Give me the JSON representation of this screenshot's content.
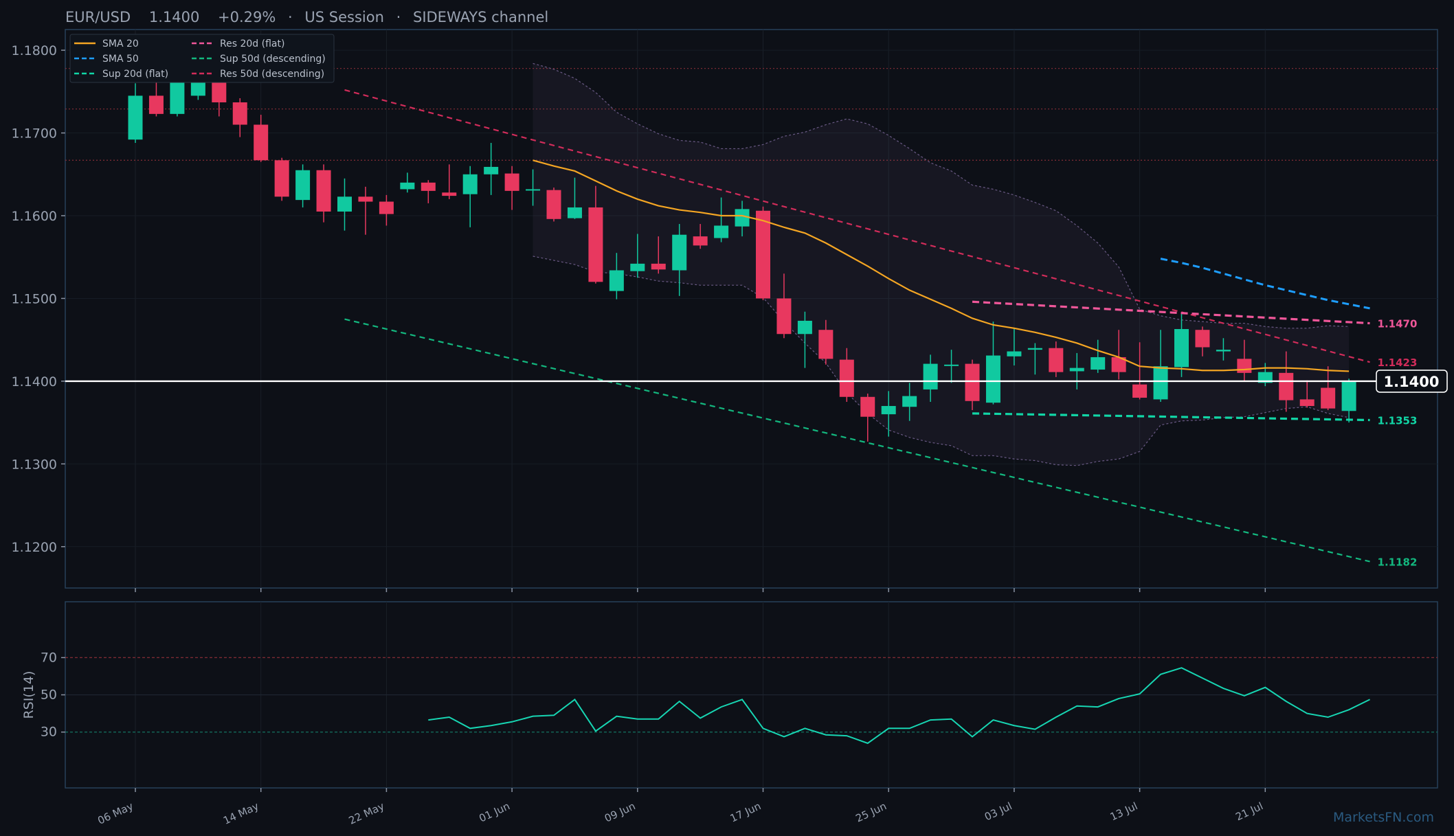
{
  "header": {
    "symbol": "EUR/USD",
    "price": "1.1400",
    "change": "+0.29%",
    "session": "US Session",
    "regime": "SIDEWAYS channel",
    "separator": "·"
  },
  "watermark": "MarketsFN.com",
  "colors": {
    "background": "#0d1017",
    "panel_border": "#26405a",
    "bull": "#11c9a0",
    "bear": "#e8385f",
    "sma20": "#f5a623",
    "sma50": "#1e9eff",
    "res20": "#f0579a",
    "sup20": "#11d6a6",
    "res50": "#d12c5a",
    "sup50": "#13b87f",
    "price_line": "#ffffff",
    "rsi": "#17d6b3"
  },
  "legend": [
    {
      "label": "SMA 20",
      "color": "#f5a623",
      "style": "solid"
    },
    {
      "label": "Res 20d (flat)",
      "color": "#f0579a",
      "style": "dashed"
    },
    {
      "label": "SMA 50",
      "color": "#1e9eff",
      "style": "dashed"
    },
    {
      "label": "Sup 50d (descending)",
      "color": "#13b87f",
      "style": "dashed"
    },
    {
      "label": "Sup 20d (flat)",
      "color": "#11d6a6",
      "style": "dashed"
    },
    {
      "label": "Res 50d (descending)",
      "color": "#d12c5a",
      "style": "dashed"
    }
  ],
  "chart_data": [
    {
      "type": "candlestick",
      "title": "EUR/USD 1.1400 +0.29% · US Session · SIDEWAYS channel",
      "ylim": [
        1.115,
        1.1825
      ],
      "yticks": [
        "1.1200",
        "1.1300",
        "1.1400",
        "1.1500",
        "1.1600",
        "1.1700",
        "1.1800"
      ],
      "x_tick_labels": [
        "06 May",
        "14 May",
        "22 May",
        "01 Jun",
        "09 Jun",
        "17 Jun",
        "25 Jun",
        "03 Jul",
        "13 Jul",
        "21 Jul"
      ],
      "x_tick_indices": [
        0,
        6,
        12,
        18,
        24,
        30,
        36,
        42,
        48,
        54
      ],
      "candles": [
        {
          "o": 1.1692,
          "h": 1.176,
          "l": 1.1688,
          "c": 1.1745
        },
        {
          "o": 1.1745,
          "h": 1.1762,
          "l": 1.172,
          "c": 1.1723
        },
        {
          "o": 1.1723,
          "h": 1.179,
          "l": 1.172,
          "c": 1.1785
        },
        {
          "o": 1.1745,
          "h": 1.179,
          "l": 1.174,
          "c": 1.1782
        },
        {
          "o": 1.1782,
          "h": 1.179,
          "l": 1.172,
          "c": 1.1737
        },
        {
          "o": 1.1737,
          "h": 1.1742,
          "l": 1.1695,
          "c": 1.171
        },
        {
          "o": 1.171,
          "h": 1.1722,
          "l": 1.1665,
          "c": 1.1667
        },
        {
          "o": 1.1667,
          "h": 1.167,
          "l": 1.1618,
          "c": 1.1623
        },
        {
          "o": 1.1619,
          "h": 1.1662,
          "l": 1.161,
          "c": 1.1655
        },
        {
          "o": 1.1655,
          "h": 1.1662,
          "l": 1.1592,
          "c": 1.1605
        },
        {
          "o": 1.1605,
          "h": 1.1645,
          "l": 1.1582,
          "c": 1.1623
        },
        {
          "o": 1.1623,
          "h": 1.1635,
          "l": 1.1577,
          "c": 1.1617
        },
        {
          "o": 1.1617,
          "h": 1.1625,
          "l": 1.1588,
          "c": 1.1602
        },
        {
          "o": 1.1632,
          "h": 1.1652,
          "l": 1.1628,
          "c": 1.164
        },
        {
          "o": 1.164,
          "h": 1.1643,
          "l": 1.1615,
          "c": 1.163
        },
        {
          "o": 1.1628,
          "h": 1.1662,
          "l": 1.162,
          "c": 1.1624
        },
        {
          "o": 1.1626,
          "h": 1.166,
          "l": 1.1586,
          "c": 1.165
        },
        {
          "o": 1.165,
          "h": 1.1688,
          "l": 1.1625,
          "c": 1.1659
        },
        {
          "o": 1.1651,
          "h": 1.166,
          "l": 1.1607,
          "c": 1.163
        },
        {
          "o": 1.1631,
          "h": 1.1656,
          "l": 1.1612,
          "c": 1.1632
        },
        {
          "o": 1.1631,
          "h": 1.1634,
          "l": 1.1593,
          "c": 1.1596
        },
        {
          "o": 1.1597,
          "h": 1.1646,
          "l": 1.1596,
          "c": 1.161
        },
        {
          "o": 1.161,
          "h": 1.1636,
          "l": 1.1518,
          "c": 1.152
        },
        {
          "o": 1.1509,
          "h": 1.1555,
          "l": 1.1499,
          "c": 1.1534
        },
        {
          "o": 1.1533,
          "h": 1.1578,
          "l": 1.1525,
          "c": 1.1542
        },
        {
          "o": 1.1542,
          "h": 1.1575,
          "l": 1.153,
          "c": 1.1535
        },
        {
          "o": 1.1534,
          "h": 1.159,
          "l": 1.1503,
          "c": 1.1577
        },
        {
          "o": 1.1575,
          "h": 1.159,
          "l": 1.156,
          "c": 1.1564
        },
        {
          "o": 1.1573,
          "h": 1.1622,
          "l": 1.1568,
          "c": 1.1588
        },
        {
          "o": 1.1587,
          "h": 1.1618,
          "l": 1.1575,
          "c": 1.1608
        },
        {
          "o": 1.1606,
          "h": 1.1611,
          "l": 1.1498,
          "c": 1.15
        },
        {
          "o": 1.15,
          "h": 1.153,
          "l": 1.1452,
          "c": 1.1457
        },
        {
          "o": 1.1457,
          "h": 1.1484,
          "l": 1.1416,
          "c": 1.1473
        },
        {
          "o": 1.1462,
          "h": 1.1474,
          "l": 1.142,
          "c": 1.1427
        },
        {
          "o": 1.1426,
          "h": 1.144,
          "l": 1.1375,
          "c": 1.1381
        },
        {
          "o": 1.1381,
          "h": 1.1385,
          "l": 1.1327,
          "c": 1.1357
        },
        {
          "o": 1.136,
          "h": 1.1388,
          "l": 1.1333,
          "c": 1.137
        },
        {
          "o": 1.1369,
          "h": 1.1398,
          "l": 1.1352,
          "c": 1.1382
        },
        {
          "o": 1.139,
          "h": 1.1432,
          "l": 1.1375,
          "c": 1.1421
        },
        {
          "o": 1.142,
          "h": 1.1438,
          "l": 1.1398,
          "c": 1.142
        },
        {
          "o": 1.1421,
          "h": 1.1426,
          "l": 1.1365,
          "c": 1.1376
        },
        {
          "o": 1.1374,
          "h": 1.1472,
          "l": 1.1372,
          "c": 1.1431
        },
        {
          "o": 1.143,
          "h": 1.1464,
          "l": 1.1419,
          "c": 1.1436
        },
        {
          "o": 1.1438,
          "h": 1.1446,
          "l": 1.1408,
          "c": 1.144
        },
        {
          "o": 1.144,
          "h": 1.1448,
          "l": 1.1405,
          "c": 1.1411
        },
        {
          "o": 1.1412,
          "h": 1.1434,
          "l": 1.139,
          "c": 1.1416
        },
        {
          "o": 1.1414,
          "h": 1.145,
          "l": 1.141,
          "c": 1.1429
        },
        {
          "o": 1.1429,
          "h": 1.1462,
          "l": 1.1402,
          "c": 1.1411
        },
        {
          "o": 1.1396,
          "h": 1.1447,
          "l": 1.1378,
          "c": 1.138
        },
        {
          "o": 1.1378,
          "h": 1.1462,
          "l": 1.1375,
          "c": 1.1418
        },
        {
          "o": 1.1417,
          "h": 1.1482,
          "l": 1.1405,
          "c": 1.1463
        },
        {
          "o": 1.1462,
          "h": 1.1466,
          "l": 1.143,
          "c": 1.1441
        },
        {
          "o": 1.1436,
          "h": 1.1452,
          "l": 1.1425,
          "c": 1.1438
        },
        {
          "o": 1.1427,
          "h": 1.145,
          "l": 1.14,
          "c": 1.141
        },
        {
          "o": 1.1398,
          "h": 1.1422,
          "l": 1.1394,
          "c": 1.1411
        },
        {
          "o": 1.141,
          "h": 1.1436,
          "l": 1.1363,
          "c": 1.1377
        },
        {
          "o": 1.1378,
          "h": 1.1401,
          "l": 1.1368,
          "c": 1.137
        },
        {
          "o": 1.1392,
          "h": 1.1418,
          "l": 1.1365,
          "c": 1.1367
        },
        {
          "o": 1.1364,
          "h": 1.1403,
          "l": 1.135,
          "c": 1.14
        }
      ],
      "sma20": {
        "start_index": 19,
        "values": [
          1.1667,
          1.166,
          1.1654,
          1.1642,
          1.163,
          1.162,
          1.1612,
          1.1607,
          1.1604,
          1.16,
          1.16,
          1.1594,
          1.1586,
          1.1579,
          1.1567,
          1.1553,
          1.1539,
          1.1524,
          1.151,
          1.1499,
          1.1488,
          1.1476,
          1.1468,
          1.1464,
          1.1459,
          1.1453,
          1.1446,
          1.1437,
          1.1429,
          1.1418,
          1.1416,
          1.1415,
          1.1413,
          1.1413,
          1.1414,
          1.1416,
          1.1416,
          1.1415,
          1.1413,
          1.1412
        ]
      },
      "sma50": {
        "start_index": 49,
        "values": [
          1.1548,
          1.1543,
          1.1537,
          1.153,
          1.1523,
          1.1516,
          1.151,
          1.1504,
          1.1498,
          1.1493,
          1.1488
        ]
      },
      "res20": {
        "x": [
          40,
          59
        ],
        "y": [
          1.1496,
          1.147
        ],
        "label": "1.1470"
      },
      "sup20": {
        "x": [
          40,
          59
        ],
        "y": [
          1.1361,
          1.1353
        ],
        "label": "1.1353"
      },
      "res50": {
        "x": [
          10,
          59
        ],
        "y": [
          1.1752,
          1.1423
        ],
        "label": "1.1423"
      },
      "sup50": {
        "x": [
          10,
          59
        ],
        "y": [
          1.1475,
          1.1182
        ],
        "label": "1.1182"
      },
      "bollinger": {
        "start_index": 19,
        "upper": [
          1.1784,
          1.1777,
          1.1766,
          1.1749,
          1.1725,
          1.1711,
          1.1699,
          1.1691,
          1.1689,
          1.1681,
          1.1681,
          1.1686,
          1.1696,
          1.1701,
          1.171,
          1.1717,
          1.1711,
          1.1697,
          1.1681,
          1.1664,
          1.1654,
          1.1637,
          1.1632,
          1.1625,
          1.1616,
          1.1606,
          1.1588,
          1.1567,
          1.1538,
          1.1487,
          1.1479,
          1.1474,
          1.1472,
          1.147,
          1.147,
          1.1466,
          1.1464,
          1.1464,
          1.1467,
          1.1466
        ],
        "lower": [
          1.1551,
          1.1546,
          1.1541,
          1.1532,
          1.153,
          1.1526,
          1.1521,
          1.1519,
          1.1516,
          1.1516,
          1.1516,
          1.1501,
          1.1472,
          1.1446,
          1.1422,
          1.1386,
          1.1361,
          1.1341,
          1.1332,
          1.1326,
          1.1322,
          1.131,
          1.131,
          1.1306,
          1.1304,
          1.1299,
          1.1298,
          1.1303,
          1.1306,
          1.1315,
          1.1347,
          1.1352,
          1.1353,
          1.1356,
          1.1357,
          1.1362,
          1.1367,
          1.1369,
          1.1361,
          1.1356
        ]
      },
      "horizontal_levels": [
        1.1778,
        1.1729,
        1.1667
      ],
      "current_price": {
        "value": 1.14,
        "label": "1.1400"
      }
    },
    {
      "type": "line",
      "ylabel": "RSI(14)",
      "ylim": [
        0,
        100
      ],
      "yticks": [
        "30",
        "50",
        "70"
      ],
      "thresholds": [
        30,
        50,
        70
      ],
      "series": [
        {
          "start_index": 14,
          "values": [
            36.5,
            38,
            32,
            33.5,
            35.5,
            38.5,
            39,
            47.5,
            30.5,
            38.5,
            37,
            37,
            46.5,
            37.5,
            43.5,
            47.5,
            32,
            27.5,
            32,
            28.5,
            28,
            24,
            32,
            32,
            36.5,
            37,
            27.5,
            36.5,
            33.5,
            31.5,
            38,
            44,
            43.5,
            48,
            50.5,
            61,
            64.5,
            59,
            53.5,
            49.5,
            54,
            46.5,
            40,
            38,
            42,
            47.5
          ]
        }
      ]
    }
  ]
}
